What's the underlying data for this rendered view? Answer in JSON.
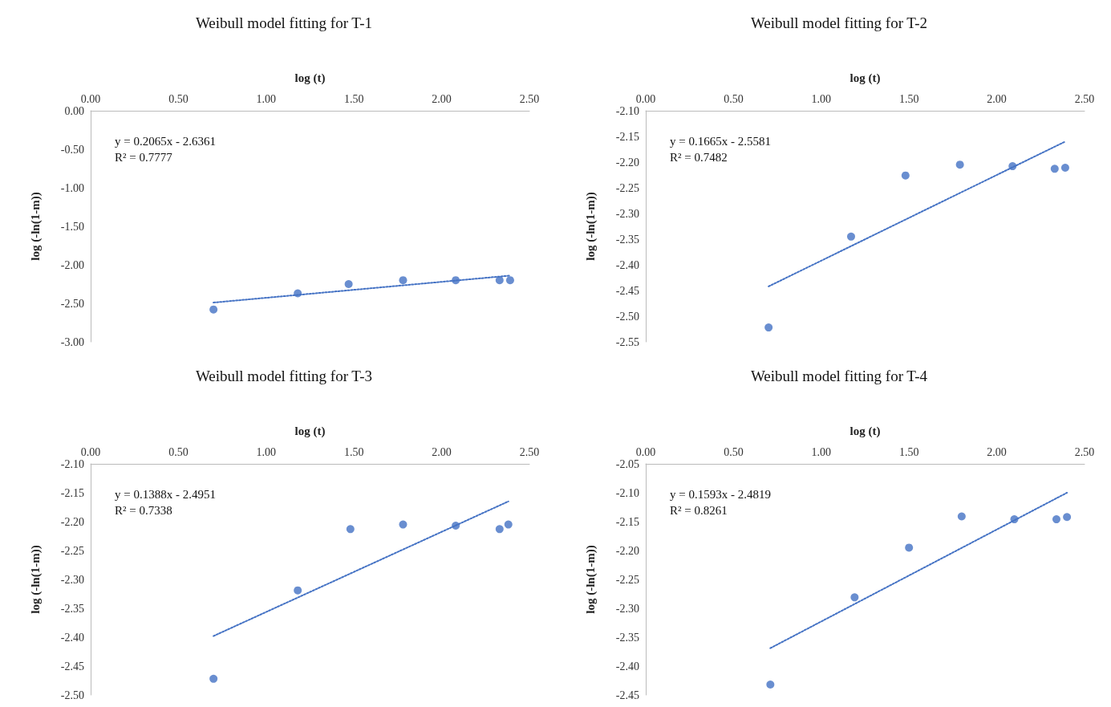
{
  "chart_data": [
    {
      "type": "scatter",
      "title": "Weibull model fitting for T-1",
      "xlabel": "log (t)",
      "ylabel": "log (-ln(1-m))",
      "xlim": [
        0,
        2.5
      ],
      "ylim": [
        -3,
        0
      ],
      "xticks": [
        {
          "value": 0,
          "label": "0.00"
        },
        {
          "value": 0.5,
          "label": "0.50"
        },
        {
          "value": 1,
          "label": "1.00"
        },
        {
          "value": 1.5,
          "label": "1.50"
        },
        {
          "value": 2,
          "label": "2.00"
        },
        {
          "value": 2.5,
          "label": "2.50"
        }
      ],
      "yticks": [
        {
          "value": 0,
          "label": "0.00"
        },
        {
          "value": -0.5,
          "label": "-0.50"
        },
        {
          "value": -1,
          "label": "-1.00"
        },
        {
          "value": -1.5,
          "label": "-1.50"
        },
        {
          "value": -2,
          "label": "-2.00"
        },
        {
          "value": -2.5,
          "label": "-2.50"
        },
        {
          "value": -3,
          "label": "-3.00"
        }
      ],
      "annotations": [
        "y = 0.2065x - 2.6361",
        "R² = 0.7777"
      ],
      "series": [
        {
          "type": "scatter",
          "color": "#4472c4",
          "marker": "circle",
          "x": [
            0.7,
            1.18,
            1.47,
            1.78,
            2.08,
            2.33,
            2.39
          ],
          "values": [
            -2.58,
            -2.37,
            -2.25,
            -2.2,
            -2.2,
            -2.2,
            -2.2
          ]
        },
        {
          "type": "line",
          "color": "#4472c4",
          "marker": "none",
          "line_style": "dotted",
          "x": [
            0.7,
            2.39
          ],
          "values": [
            -2.49,
            -2.14
          ]
        }
      ]
    },
    {
      "type": "scatter",
      "title": "Weibull model fitting for T-2",
      "xlabel": "log (t)",
      "ylabel": "log (-ln(1-m))",
      "xlim": [
        0,
        2.5
      ],
      "ylim": [
        -2.55,
        -2.1
      ],
      "xticks": [
        {
          "value": 0,
          "label": "0.00"
        },
        {
          "value": 0.5,
          "label": "0.50"
        },
        {
          "value": 1,
          "label": "1.00"
        },
        {
          "value": 1.5,
          "label": "1.50"
        },
        {
          "value": 2,
          "label": "2.00"
        },
        {
          "value": 2.5,
          "label": "2.50"
        }
      ],
      "yticks": [
        {
          "value": -2.1,
          "label": "-2.10"
        },
        {
          "value": -2.15,
          "label": "-2.15"
        },
        {
          "value": -2.2,
          "label": "-2.20"
        },
        {
          "value": -2.25,
          "label": "-2.25"
        },
        {
          "value": -2.3,
          "label": "-2.30"
        },
        {
          "value": -2.35,
          "label": "-2.35"
        },
        {
          "value": -2.4,
          "label": "-2.40"
        },
        {
          "value": -2.45,
          "label": "-2.45"
        },
        {
          "value": -2.5,
          "label": "-2.50"
        },
        {
          "value": -2.55,
          "label": "-2.55"
        }
      ],
      "annotations": [
        "y = 0.1665x - 2.5581",
        "R² = 0.7482"
      ],
      "series": [
        {
          "type": "scatter",
          "color": "#4472c4",
          "marker": "circle",
          "x": [
            0.7,
            1.17,
            1.48,
            1.79,
            2.09,
            2.33,
            2.39
          ],
          "values": [
            -2.522,
            -2.345,
            -2.226,
            -2.205,
            -2.208,
            -2.213,
            -2.211
          ]
        },
        {
          "type": "line",
          "color": "#4472c4",
          "marker": "none",
          "line_style": "dotted",
          "x": [
            0.7,
            2.39
          ],
          "values": [
            -2.442,
            -2.16
          ]
        }
      ]
    },
    {
      "type": "scatter",
      "title": "Weibull model fitting for T-3",
      "xlabel": "log (t)",
      "ylabel": "log (-ln(1-m))",
      "xlim": [
        0,
        2.5
      ],
      "ylim": [
        -2.5,
        -2.1
      ],
      "xticks": [
        {
          "value": 0,
          "label": "0.00"
        },
        {
          "value": 0.5,
          "label": "0.50"
        },
        {
          "value": 1,
          "label": "1.00"
        },
        {
          "value": 1.5,
          "label": "1.50"
        },
        {
          "value": 2,
          "label": "2.00"
        },
        {
          "value": 2.5,
          "label": "2.50"
        }
      ],
      "yticks": [
        {
          "value": -2.1,
          "label": "-2.10"
        },
        {
          "value": -2.15,
          "label": "-2.15"
        },
        {
          "value": -2.2,
          "label": "-2.20"
        },
        {
          "value": -2.25,
          "label": "-2.25"
        },
        {
          "value": -2.3,
          "label": "-2.30"
        },
        {
          "value": -2.35,
          "label": "-2.35"
        },
        {
          "value": -2.4,
          "label": "-2.40"
        },
        {
          "value": -2.45,
          "label": "-2.45"
        },
        {
          "value": -2.5,
          "label": "-2.50"
        }
      ],
      "annotations": [
        "y = 0.1388x - 2.4951",
        "R² = 0.7338"
      ],
      "series": [
        {
          "type": "scatter",
          "color": "#4472c4",
          "marker": "circle",
          "x": [
            0.7,
            1.18,
            1.48,
            1.78,
            2.08,
            2.33,
            2.38
          ],
          "values": [
            -2.472,
            -2.319,
            -2.213,
            -2.205,
            -2.207,
            -2.213,
            -2.205
          ]
        },
        {
          "type": "line",
          "color": "#4472c4",
          "marker": "none",
          "line_style": "dotted",
          "x": [
            0.7,
            2.38
          ],
          "values": [
            -2.398,
            -2.165
          ]
        }
      ]
    },
    {
      "type": "scatter",
      "title": "Weibull model fitting for T-4",
      "xlabel": "log (t)",
      "ylabel": "log (-ln(1-m))",
      "xlim": [
        0,
        2.5
      ],
      "ylim": [
        -2.45,
        -2.05
      ],
      "xticks": [
        {
          "value": 0,
          "label": "0.00"
        },
        {
          "value": 0.5,
          "label": "0.50"
        },
        {
          "value": 1,
          "label": "1.00"
        },
        {
          "value": 1.5,
          "label": "1.50"
        },
        {
          "value": 2,
          "label": "2.00"
        },
        {
          "value": 2.5,
          "label": "2.50"
        }
      ],
      "yticks": [
        {
          "value": -2.05,
          "label": "-2.05"
        },
        {
          "value": -2.1,
          "label": "-2.10"
        },
        {
          "value": -2.15,
          "label": "-2.15"
        },
        {
          "value": -2.2,
          "label": "-2.20"
        },
        {
          "value": -2.25,
          "label": "-2.25"
        },
        {
          "value": -2.3,
          "label": "-2.30"
        },
        {
          "value": -2.35,
          "label": "-2.35"
        },
        {
          "value": -2.4,
          "label": "-2.40"
        },
        {
          "value": -2.45,
          "label": "-2.45"
        }
      ],
      "annotations": [
        "y = 0.1593x - 2.4819",
        "R² = 0.8261"
      ],
      "series": [
        {
          "type": "scatter",
          "color": "#4472c4",
          "marker": "circle",
          "x": [
            0.71,
            1.19,
            1.5,
            1.8,
            2.1,
            2.34,
            2.4
          ],
          "values": [
            -2.432,
            -2.281,
            -2.195,
            -2.141,
            -2.146,
            -2.146,
            -2.142
          ]
        },
        {
          "type": "line",
          "color": "#4472c4",
          "marker": "none",
          "line_style": "dotted",
          "x": [
            0.71,
            2.4
          ],
          "values": [
            -2.369,
            -2.1
          ]
        }
      ]
    }
  ]
}
